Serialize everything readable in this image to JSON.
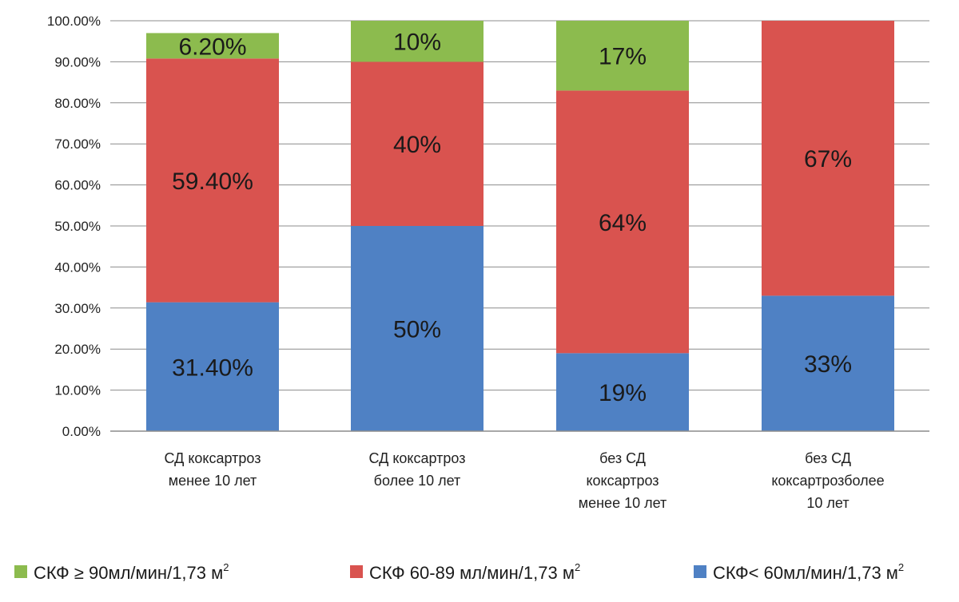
{
  "chart_data": {
    "type": "bar",
    "stacked": true,
    "title": "",
    "xlabel": "",
    "ylabel": "",
    "ylim": [
      0,
      100
    ],
    "yticks": [
      "0.00%",
      "10.00%",
      "20.00%",
      "30.00%",
      "40.00%",
      "50.00%",
      "60.00%",
      "70.00%",
      "80.00%",
      "90.00%",
      "100.00%"
    ],
    "grid": true,
    "legend_position": "bottom",
    "categories": [
      [
        "СД коксартроз",
        "менее 10 лет"
      ],
      [
        "СД коксартроз",
        "более 10 лет"
      ],
      [
        "без СД",
        "коксартроз",
        "менее 10 лет"
      ],
      [
        "без СД",
        "коксартрозболее",
        "10 лет"
      ]
    ],
    "series": [
      {
        "name": "СКФ< 60мл/мин/1,73 м",
        "sup": "2",
        "color": "#4f81c4",
        "values": [
          31.4,
          50,
          19,
          33
        ],
        "labels": [
          "31.40%",
          "50%",
          "19%",
          "33%"
        ]
      },
      {
        "name": "СКФ 60-89 мл/мин/1,73 м",
        "sup": "2",
        "color": "#d9534f",
        "values": [
          59.4,
          40,
          64,
          67
        ],
        "labels": [
          "59.40%",
          "40%",
          "64%",
          "67%"
        ]
      },
      {
        "name": "СКФ ≥ 90мл/мин/1,73 м",
        "sup": "2",
        "color": "#8cbb4e",
        "values": [
          6.2,
          10,
          17,
          0
        ],
        "labels": [
          "6.20%",
          "10%",
          "17%",
          ""
        ]
      }
    ],
    "legend_order": [
      2,
      1,
      0
    ]
  }
}
